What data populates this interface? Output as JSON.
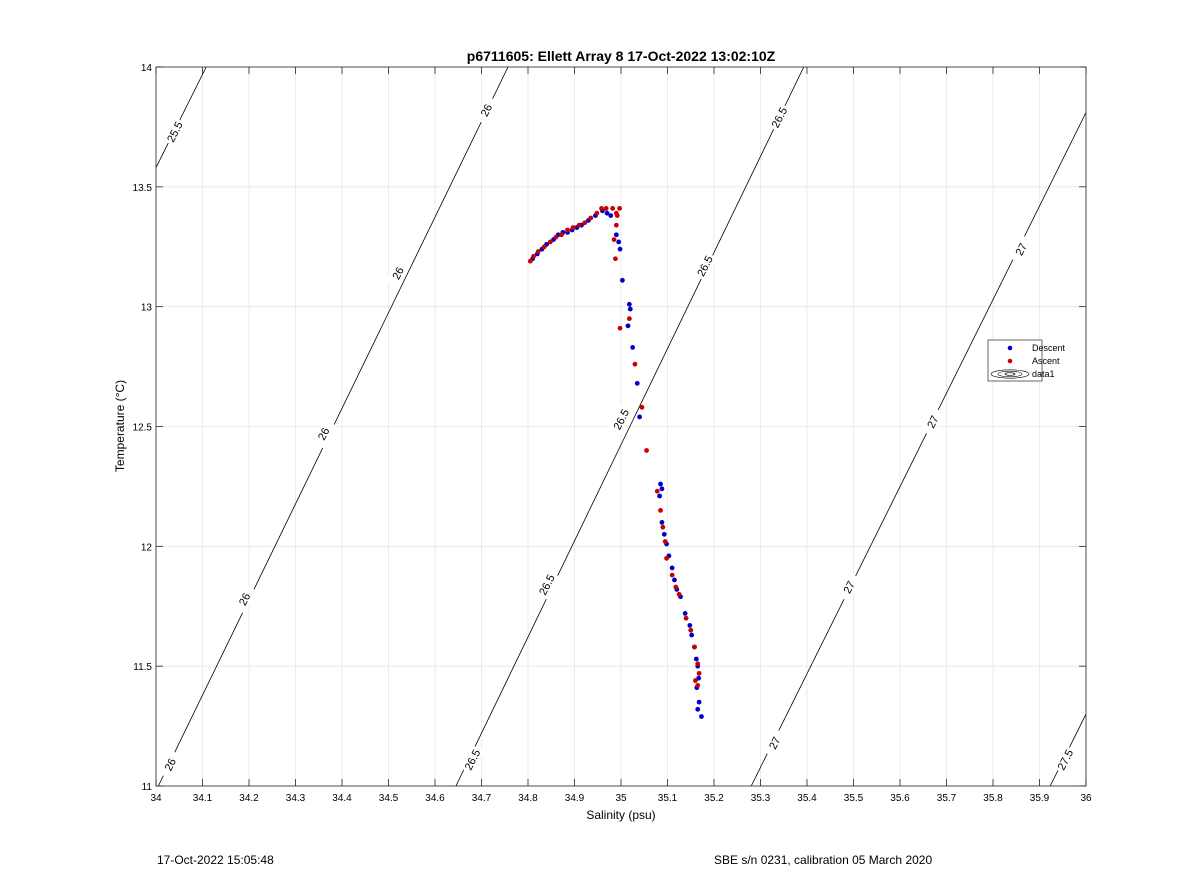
{
  "chart_data": {
    "type": "scatter",
    "title": "p6711605: Ellett Array 8 17-Oct-2022 13:02:10Z",
    "xlabel": "Salinity (psu)",
    "ylabel": "Temperature (°C)",
    "xlim": [
      34,
      36
    ],
    "ylim": [
      11,
      14
    ],
    "xticks": [
      34,
      34.1,
      34.2,
      34.3,
      34.4,
      34.5,
      34.6,
      34.7,
      34.8,
      34.9,
      35,
      35.1,
      35.2,
      35.3,
      35.4,
      35.5,
      35.6,
      35.7,
      35.8,
      35.9,
      36
    ],
    "xtick_labels": [
      "34",
      "34.1",
      "34.2",
      "34.3",
      "34.4",
      "34.5",
      "34.6",
      "34.7",
      "34.8",
      "34.9",
      "35",
      "35.1",
      "35.2",
      "35.3",
      "35.4",
      "35.5",
      "35.6",
      "35.7",
      "35.8",
      "35.9",
      "36"
    ],
    "yticks": [
      11,
      11.5,
      12,
      12.5,
      13,
      13.5,
      14
    ],
    "ytick_labels": [
      "11",
      "11.5",
      "12",
      "12.5",
      "13",
      "13.5",
      "14"
    ],
    "grid": true,
    "legend_position": "right",
    "series": [
      {
        "name": "Descent",
        "color": "#0000cc",
        "points": [
          [
            34.81,
            13.2
          ],
          [
            34.82,
            13.22
          ],
          [
            34.83,
            13.24
          ],
          [
            34.84,
            13.26
          ],
          [
            34.855,
            13.28
          ],
          [
            34.865,
            13.3
          ],
          [
            34.875,
            13.31
          ],
          [
            34.885,
            13.31
          ],
          [
            34.895,
            13.32
          ],
          [
            34.905,
            13.33
          ],
          [
            34.915,
            13.34
          ],
          [
            34.93,
            13.36
          ],
          [
            34.945,
            13.38
          ],
          [
            34.96,
            13.4
          ],
          [
            34.97,
            13.39
          ],
          [
            34.978,
            13.38
          ],
          [
            34.99,
            13.3
          ],
          [
            34.995,
            13.27
          ],
          [
            34.998,
            13.24
          ],
          [
            35.003,
            13.11
          ],
          [
            35.018,
            13.01
          ],
          [
            35.02,
            12.99
          ],
          [
            35.015,
            12.92
          ],
          [
            35.025,
            12.83
          ],
          [
            35.035,
            12.68
          ],
          [
            35.04,
            12.54
          ],
          [
            35.085,
            12.26
          ],
          [
            35.088,
            12.24
          ],
          [
            35.083,
            12.21
          ],
          [
            35.088,
            12.1
          ],
          [
            35.093,
            12.05
          ],
          [
            35.098,
            12.01
          ],
          [
            35.103,
            11.96
          ],
          [
            35.11,
            11.91
          ],
          [
            35.115,
            11.86
          ],
          [
            35.12,
            11.82
          ],
          [
            35.128,
            11.79
          ],
          [
            35.138,
            11.72
          ],
          [
            35.148,
            11.67
          ],
          [
            35.152,
            11.63
          ],
          [
            35.158,
            11.58
          ],
          [
            35.162,
            11.53
          ],
          [
            35.165,
            11.5
          ],
          [
            35.167,
            11.45
          ],
          [
            35.163,
            11.41
          ],
          [
            35.168,
            11.35
          ],
          [
            35.165,
            11.32
          ],
          [
            35.173,
            11.29
          ]
        ]
      },
      {
        "name": "Ascent",
        "color": "#cc0000",
        "points": [
          [
            34.805,
            13.19
          ],
          [
            34.812,
            13.21
          ],
          [
            34.822,
            13.23
          ],
          [
            34.835,
            13.25
          ],
          [
            34.848,
            13.27
          ],
          [
            34.86,
            13.29
          ],
          [
            34.872,
            13.3
          ],
          [
            34.885,
            13.32
          ],
          [
            34.897,
            13.33
          ],
          [
            34.91,
            13.34
          ],
          [
            34.922,
            13.35
          ],
          [
            34.935,
            13.37
          ],
          [
            34.948,
            13.39
          ],
          [
            34.958,
            13.41
          ],
          [
            34.968,
            13.41
          ],
          [
            34.982,
            13.41
          ],
          [
            34.99,
            13.39
          ],
          [
            34.997,
            13.41
          ],
          [
            34.992,
            13.38
          ],
          [
            34.99,
            13.34
          ],
          [
            34.985,
            13.28
          ],
          [
            34.988,
            13.2
          ],
          [
            34.998,
            12.91
          ],
          [
            35.018,
            12.95
          ],
          [
            35.03,
            12.76
          ],
          [
            35.045,
            12.58
          ],
          [
            35.055,
            12.4
          ],
          [
            35.078,
            12.23
          ],
          [
            35.085,
            12.15
          ],
          [
            35.09,
            12.08
          ],
          [
            35.095,
            12.02
          ],
          [
            35.098,
            11.95
          ],
          [
            35.11,
            11.88
          ],
          [
            35.118,
            11.83
          ],
          [
            35.125,
            11.8
          ],
          [
            35.14,
            11.7
          ],
          [
            35.15,
            11.65
          ],
          [
            35.158,
            11.58
          ],
          [
            35.165,
            11.51
          ],
          [
            35.168,
            11.47
          ],
          [
            35.16,
            11.44
          ],
          [
            35.165,
            11.42
          ]
        ]
      }
    ],
    "contours": [
      {
        "sigma": 25.5,
        "label": "25.5",
        "from": [
          34.0,
          13.58
        ],
        "to": [
          34.108,
          14.0
        ]
      },
      {
        "sigma": 26,
        "label": "26",
        "from": [
          34.005,
          11.0
        ],
        "to": [
          34.757,
          14.0
        ]
      },
      {
        "sigma": 26.5,
        "label": "26.5",
        "from": [
          34.645,
          11.0
        ],
        "to": [
          35.393,
          14.0
        ]
      },
      {
        "sigma": 27,
        "label": "27",
        "from": [
          35.28,
          11.0
        ],
        "to": [
          36.0,
          13.81
        ]
      },
      {
        "sigma": 27.5,
        "label": "27.5",
        "from": [
          35.923,
          11.0
        ],
        "to": [
          36.0,
          11.3
        ]
      }
    ],
    "contour_labels": [
      {
        "text": "25.5",
        "at": [
          34.04,
          13.73
        ]
      },
      {
        "text": "26",
        "at": [
          34.71,
          13.82
        ]
      },
      {
        "text": "26",
        "at": [
          34.52,
          13.14
        ]
      },
      {
        "text": "26",
        "at": [
          34.36,
          12.47
        ]
      },
      {
        "text": "26",
        "at": [
          34.19,
          11.78
        ]
      },
      {
        "text": "26",
        "at": [
          34.03,
          11.09
        ]
      },
      {
        "text": "26.5",
        "at": [
          35.34,
          13.79
        ]
      },
      {
        "text": "26.5",
        "at": [
          35.18,
          13.17
        ]
      },
      {
        "text": "26.5",
        "at": [
          35.0,
          12.53
        ]
      },
      {
        "text": "26.5",
        "at": [
          34.84,
          11.84
        ]
      },
      {
        "text": "26.5",
        "at": [
          34.68,
          11.11
        ]
      },
      {
        "text": "27",
        "at": [
          35.86,
          13.24
        ]
      },
      {
        "text": "27",
        "at": [
          35.67,
          12.52
        ]
      },
      {
        "text": "27",
        "at": [
          35.49,
          11.83
        ]
      },
      {
        "text": "27",
        "at": [
          35.33,
          11.18
        ]
      },
      {
        "text": "27.5",
        "at": [
          35.955,
          11.11
        ]
      }
    ],
    "legend": [
      "Descent",
      "Ascent",
      "data1"
    ]
  },
  "footer": {
    "left": "17-Oct-2022 15:05:48",
    "right": "SBE s/n 0231, calibration 05 March 2020"
  }
}
